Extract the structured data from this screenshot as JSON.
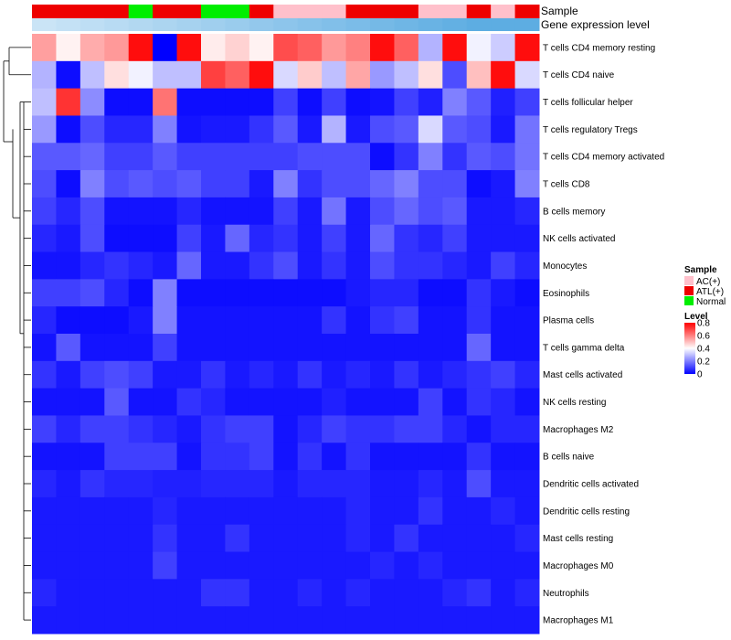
{
  "chart_data": {
    "type": "heatmap",
    "annotation_tracks": [
      {
        "label": "Sample",
        "values": [
          "ATL(+)",
          "ATL(+)",
          "ATL(+)",
          "ATL(+)",
          "Normal",
          "ATL(+)",
          "ATL(+)",
          "Normal",
          "Normal",
          "ATL(+)",
          "AC(+)",
          "AC(+)",
          "AC(+)",
          "ATL(+)",
          "ATL(+)",
          "ATL(+)",
          "AC(+)",
          "AC(+)",
          "ATL(+)",
          "AC(+)",
          "ATL(+)"
        ]
      },
      {
        "label": "Gene expression level",
        "values": [
          0.1,
          0.15,
          0.2,
          0.25,
          0.3,
          0.35,
          0.4,
          0.45,
          0.5,
          0.55,
          0.6,
          0.65,
          0.7,
          0.75,
          0.8,
          0.85,
          0.9,
          0.95,
          1.0,
          1.0,
          1.0
        ]
      }
    ],
    "rows": [
      "T cells CD4 memory resting",
      "T cells CD4 naive",
      "T cells follicular helper",
      "T cells regulatory  Tregs",
      "T cells CD4 memory activated",
      "T cells CD8",
      "B cells memory",
      "NK cells activated",
      "Monocytes",
      "Eosinophils",
      "Plasma cells",
      "T cells gamma delta",
      "Mast cells activated",
      "NK cells resting",
      "Macrophages M2",
      "B cells naive",
      "Dendritic cells activated",
      "Dendritic cells resting",
      "Mast cells resting",
      "Macrophages M0",
      "Neutrophils",
      "Macrophages M1"
    ],
    "values": [
      [
        0.55,
        0.42,
        0.53,
        0.56,
        0.78,
        0.0,
        0.78,
        0.43,
        0.47,
        0.42,
        0.68,
        0.65,
        0.56,
        0.6,
        0.78,
        0.65,
        0.28,
        0.78,
        0.38,
        0.32,
        0.78
      ],
      [
        0.28,
        0.02,
        0.3,
        0.45,
        0.38,
        0.3,
        0.3,
        0.7,
        0.65,
        0.78,
        0.34,
        0.48,
        0.3,
        0.54,
        0.24,
        0.3,
        0.45,
        0.12,
        0.5,
        0.78,
        0.34
      ],
      [
        0.3,
        0.72,
        0.22,
        0.02,
        0.02,
        0.62,
        0.02,
        0.02,
        0.02,
        0.02,
        0.1,
        0.02,
        0.1,
        0.02,
        0.03,
        0.1,
        0.05,
        0.2,
        0.14,
        0.05,
        0.1
      ],
      [
        0.24,
        0.02,
        0.12,
        0.06,
        0.06,
        0.2,
        0.03,
        0.04,
        0.04,
        0.08,
        0.14,
        0.04,
        0.28,
        0.04,
        0.12,
        0.14,
        0.34,
        0.14,
        0.12,
        0.04,
        0.18
      ],
      [
        0.14,
        0.14,
        0.16,
        0.1,
        0.1,
        0.14,
        0.1,
        0.1,
        0.1,
        0.1,
        0.1,
        0.12,
        0.12,
        0.12,
        0.02,
        0.08,
        0.2,
        0.08,
        0.14,
        0.12,
        0.18
      ],
      [
        0.12,
        0.02,
        0.2,
        0.12,
        0.14,
        0.12,
        0.14,
        0.1,
        0.1,
        0.04,
        0.2,
        0.08,
        0.12,
        0.12,
        0.16,
        0.2,
        0.12,
        0.12,
        0.02,
        0.04,
        0.2
      ],
      [
        0.1,
        0.06,
        0.12,
        0.03,
        0.03,
        0.03,
        0.06,
        0.03,
        0.03,
        0.03,
        0.1,
        0.04,
        0.18,
        0.04,
        0.12,
        0.16,
        0.12,
        0.14,
        0.04,
        0.04,
        0.06
      ],
      [
        0.06,
        0.04,
        0.12,
        0.02,
        0.02,
        0.02,
        0.1,
        0.04,
        0.16,
        0.06,
        0.08,
        0.04,
        0.1,
        0.04,
        0.16,
        0.08,
        0.06,
        0.1,
        0.04,
        0.04,
        0.04
      ],
      [
        0.03,
        0.03,
        0.06,
        0.08,
        0.06,
        0.04,
        0.16,
        0.04,
        0.04,
        0.08,
        0.12,
        0.04,
        0.08,
        0.04,
        0.12,
        0.08,
        0.08,
        0.06,
        0.04,
        0.1,
        0.06
      ],
      [
        0.1,
        0.1,
        0.12,
        0.06,
        0.02,
        0.2,
        0.02,
        0.02,
        0.02,
        0.02,
        0.02,
        0.02,
        0.02,
        0.04,
        0.06,
        0.06,
        0.02,
        0.02,
        0.08,
        0.04,
        0.02
      ],
      [
        0.06,
        0.02,
        0.02,
        0.02,
        0.04,
        0.2,
        0.03,
        0.03,
        0.03,
        0.03,
        0.03,
        0.03,
        0.08,
        0.03,
        0.08,
        0.1,
        0.03,
        0.03,
        0.08,
        0.03,
        0.03
      ],
      [
        0.03,
        0.14,
        0.03,
        0.03,
        0.03,
        0.1,
        0.03,
        0.03,
        0.03,
        0.03,
        0.03,
        0.03,
        0.03,
        0.03,
        0.03,
        0.03,
        0.03,
        0.03,
        0.16,
        0.03,
        0.03
      ],
      [
        0.08,
        0.04,
        0.1,
        0.12,
        0.1,
        0.04,
        0.04,
        0.08,
        0.04,
        0.06,
        0.04,
        0.08,
        0.04,
        0.06,
        0.04,
        0.08,
        0.04,
        0.06,
        0.08,
        0.1,
        0.06
      ],
      [
        0.03,
        0.03,
        0.03,
        0.14,
        0.03,
        0.03,
        0.08,
        0.06,
        0.03,
        0.03,
        0.03,
        0.03,
        0.05,
        0.03,
        0.03,
        0.03,
        0.1,
        0.03,
        0.08,
        0.06,
        0.03
      ],
      [
        0.1,
        0.06,
        0.1,
        0.1,
        0.08,
        0.06,
        0.04,
        0.08,
        0.1,
        0.1,
        0.03,
        0.06,
        0.1,
        0.08,
        0.08,
        0.1,
        0.1,
        0.06,
        0.03,
        0.06,
        0.06
      ],
      [
        0.03,
        0.03,
        0.03,
        0.1,
        0.1,
        0.1,
        0.03,
        0.08,
        0.08,
        0.1,
        0.03,
        0.08,
        0.03,
        0.08,
        0.03,
        0.03,
        0.03,
        0.03,
        0.08,
        0.03,
        0.03
      ],
      [
        0.06,
        0.04,
        0.08,
        0.06,
        0.06,
        0.05,
        0.05,
        0.06,
        0.06,
        0.06,
        0.04,
        0.06,
        0.06,
        0.06,
        0.04,
        0.04,
        0.06,
        0.04,
        0.12,
        0.04,
        0.04
      ],
      [
        0.04,
        0.04,
        0.04,
        0.04,
        0.04,
        0.06,
        0.04,
        0.04,
        0.04,
        0.04,
        0.04,
        0.04,
        0.04,
        0.06,
        0.04,
        0.04,
        0.08,
        0.04,
        0.04,
        0.06,
        0.04
      ],
      [
        0.04,
        0.04,
        0.04,
        0.04,
        0.04,
        0.08,
        0.04,
        0.04,
        0.08,
        0.04,
        0.04,
        0.04,
        0.04,
        0.06,
        0.04,
        0.08,
        0.04,
        0.04,
        0.04,
        0.04,
        0.06
      ],
      [
        0.04,
        0.04,
        0.04,
        0.04,
        0.04,
        0.1,
        0.04,
        0.04,
        0.04,
        0.04,
        0.04,
        0.04,
        0.04,
        0.04,
        0.06,
        0.04,
        0.06,
        0.04,
        0.04,
        0.04,
        0.04
      ],
      [
        0.06,
        0.04,
        0.04,
        0.04,
        0.04,
        0.04,
        0.04,
        0.08,
        0.08,
        0.04,
        0.04,
        0.06,
        0.04,
        0.06,
        0.04,
        0.04,
        0.04,
        0.06,
        0.08,
        0.04,
        0.06
      ],
      [
        0.04,
        0.04,
        0.04,
        0.04,
        0.04,
        0.04,
        0.04,
        0.04,
        0.04,
        0.04,
        0.04,
        0.04,
        0.04,
        0.04,
        0.04,
        0.04,
        0.04,
        0.04,
        0.04,
        0.04,
        0.04
      ]
    ],
    "legends": {
      "sample": {
        "title": "Sample",
        "entries": [
          {
            "label": "AC(+)",
            "color": "#FFC0CB"
          },
          {
            "label": "ATL(+)",
            "color": "#EE0000"
          },
          {
            "label": "Normal",
            "color": "#00EE00"
          }
        ]
      },
      "level": {
        "title": "Level",
        "ticks": [
          0.8,
          0.6,
          0.4,
          0.2,
          0
        ],
        "range": [
          0,
          0.8
        ]
      }
    },
    "colors": {
      "low": "#0000FF",
      "mid": "#FFFFFF",
      "high": "#FF0000",
      "expr_low": "#D6EAF8",
      "expr_high": "#5DADE2"
    },
    "dendrogram": true
  }
}
